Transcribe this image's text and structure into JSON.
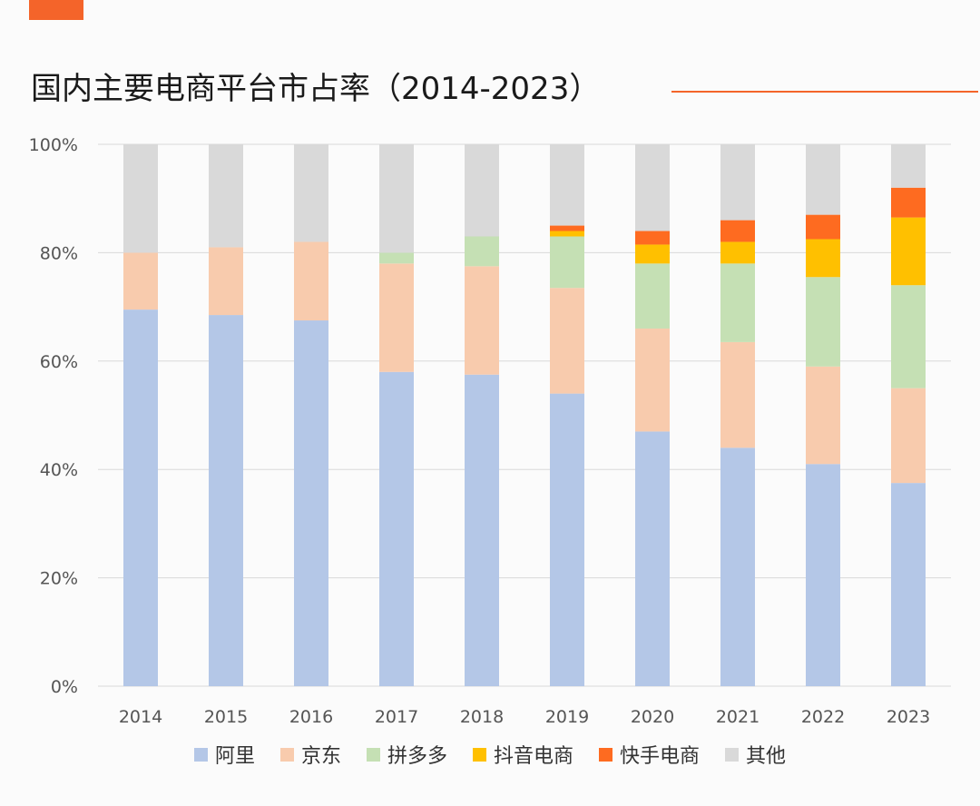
{
  "title": "国内主要电商平台市占率（2014-2023）",
  "colors": {
    "accent": "#f4642a"
  },
  "chart_data": {
    "type": "bar",
    "stacked": true,
    "categories": [
      "2014",
      "2015",
      "2016",
      "2017",
      "2018",
      "2019",
      "2020",
      "2021",
      "2022",
      "2023"
    ],
    "y_ticks": [
      "0%",
      "20%",
      "40%",
      "60%",
      "80%",
      "100%"
    ],
    "ylim": [
      0,
      100
    ],
    "grid": true,
    "legend_position": "bottom",
    "series": [
      {
        "name": "阿里",
        "color": "#b4c7e7",
        "values": [
          69.5,
          68.5,
          67.5,
          58.0,
          57.5,
          54.0,
          47.0,
          44.0,
          41.0,
          37.5
        ]
      },
      {
        "name": "京东",
        "color": "#f8cbad",
        "values": [
          10.5,
          12.5,
          14.5,
          20.0,
          20.0,
          19.5,
          19.0,
          19.5,
          18.0,
          17.5
        ]
      },
      {
        "name": "拼多多",
        "color": "#c5e0b4",
        "values": [
          0,
          0,
          0,
          2.0,
          5.5,
          9.5,
          12.0,
          14.5,
          16.5,
          19.0
        ]
      },
      {
        "name": "抖音电商",
        "color": "#ffc000",
        "values": [
          0,
          0,
          0,
          0,
          0,
          1.0,
          3.5,
          4.0,
          7.0,
          12.5
        ]
      },
      {
        "name": "快手电商",
        "color": "#fe6b20",
        "values": [
          0,
          0,
          0,
          0,
          0,
          1.0,
          2.5,
          4.0,
          4.5,
          5.5
        ]
      },
      {
        "name": "其他",
        "color": "#d9d9d9",
        "values": [
          20.0,
          19.0,
          18.0,
          20.0,
          17.0,
          15.0,
          16.0,
          14.0,
          13.0,
          8.0
        ]
      }
    ]
  }
}
